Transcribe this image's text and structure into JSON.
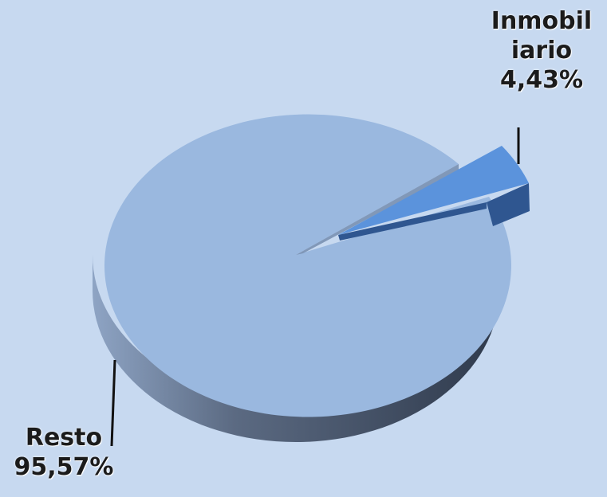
{
  "chart_data": {
    "type": "pie",
    "title": "",
    "slices": [
      {
        "category_lines": [
          "Inmobil",
          "iario"
        ],
        "value_label": "4,43%",
        "value": 4.43,
        "color": "#5b93dc",
        "exploded": true
      },
      {
        "category_lines": [
          "Resto"
        ],
        "value_label": "95,57%",
        "value": 95.57,
        "color": "#9ab8df",
        "exploded": false
      }
    ],
    "legend": "none",
    "style": "3d"
  },
  "colors": {
    "background": "#c7d9f0",
    "resto_side": "#3d4a5e",
    "inmob_side": "#2f5690",
    "leader_line": "#111111"
  }
}
